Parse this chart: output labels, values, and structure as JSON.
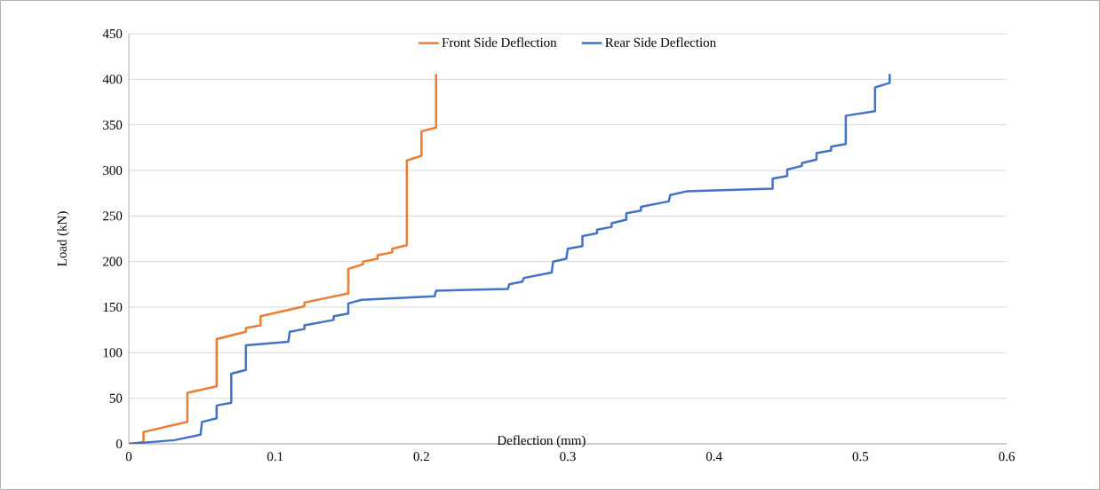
{
  "chart_data": {
    "type": "line",
    "xlabel": "Deflection (mm)",
    "ylabel": "Load (kN)",
    "xlim": [
      0,
      0.6
    ],
    "ylim": [
      0,
      450
    ],
    "xticks": [
      0,
      0.1,
      0.2,
      0.3,
      0.4,
      0.5,
      0.6
    ],
    "yticks": [
      0,
      50,
      100,
      150,
      200,
      250,
      300,
      350,
      400,
      450
    ],
    "grid": "y",
    "legend": "top",
    "marker": "none",
    "line_style": "solid",
    "series": [
      {
        "name": "Front Side Deflection",
        "color": "#ed7d31",
        "x": [
          0,
          0.01,
          0.01,
          0.04,
          0.04,
          0.06,
          0.06,
          0.08,
          0.08,
          0.09,
          0.09,
          0.12,
          0.12,
          0.15,
          0.15,
          0.16,
          0.16,
          0.17,
          0.17,
          0.18,
          0.18,
          0.19,
          0.19,
          0.2,
          0.2,
          0.21,
          0.21
        ],
        "values": [
          0,
          2,
          13,
          24,
          56,
          63,
          115,
          123,
          127,
          130,
          140,
          151,
          155,
          165,
          192,
          197,
          200,
          203,
          207,
          210,
          214,
          218,
          311,
          316,
          343,
          347,
          406
        ]
      },
      {
        "name": "Rear Side Deflection",
        "color": "#4472c4",
        "x": [
          0,
          0.031,
          0.049,
          0.05,
          0.06,
          0.06,
          0.07,
          0.07,
          0.08,
          0.08,
          0.109,
          0.11,
          0.12,
          0.12,
          0.14,
          0.14,
          0.15,
          0.15,
          0.159,
          0.209,
          0.21,
          0.259,
          0.26,
          0.269,
          0.27,
          0.289,
          0.29,
          0.299,
          0.3,
          0.31,
          0.31,
          0.32,
          0.32,
          0.33,
          0.33,
          0.34,
          0.34,
          0.35,
          0.35,
          0.369,
          0.37,
          0.381,
          0.44,
          0.44,
          0.45,
          0.45,
          0.46,
          0.46,
          0.47,
          0.47,
          0.48,
          0.48,
          0.49,
          0.49,
          0.51,
          0.51,
          0.52,
          0.52
        ],
        "values": [
          0,
          4,
          10,
          24,
          28,
          42,
          45,
          77,
          81,
          108,
          112,
          123,
          126,
          130,
          136,
          140,
          143,
          154,
          158,
          162,
          168,
          170,
          175,
          178,
          182,
          188,
          200,
          203,
          214,
          217,
          228,
          231,
          235,
          238,
          242,
          246,
          253,
          256,
          260,
          266,
          273,
          277,
          280,
          291,
          294,
          301,
          305,
          308,
          312,
          319,
          322,
          326,
          329,
          360,
          365,
          391,
          396,
          406
        ]
      }
    ]
  }
}
